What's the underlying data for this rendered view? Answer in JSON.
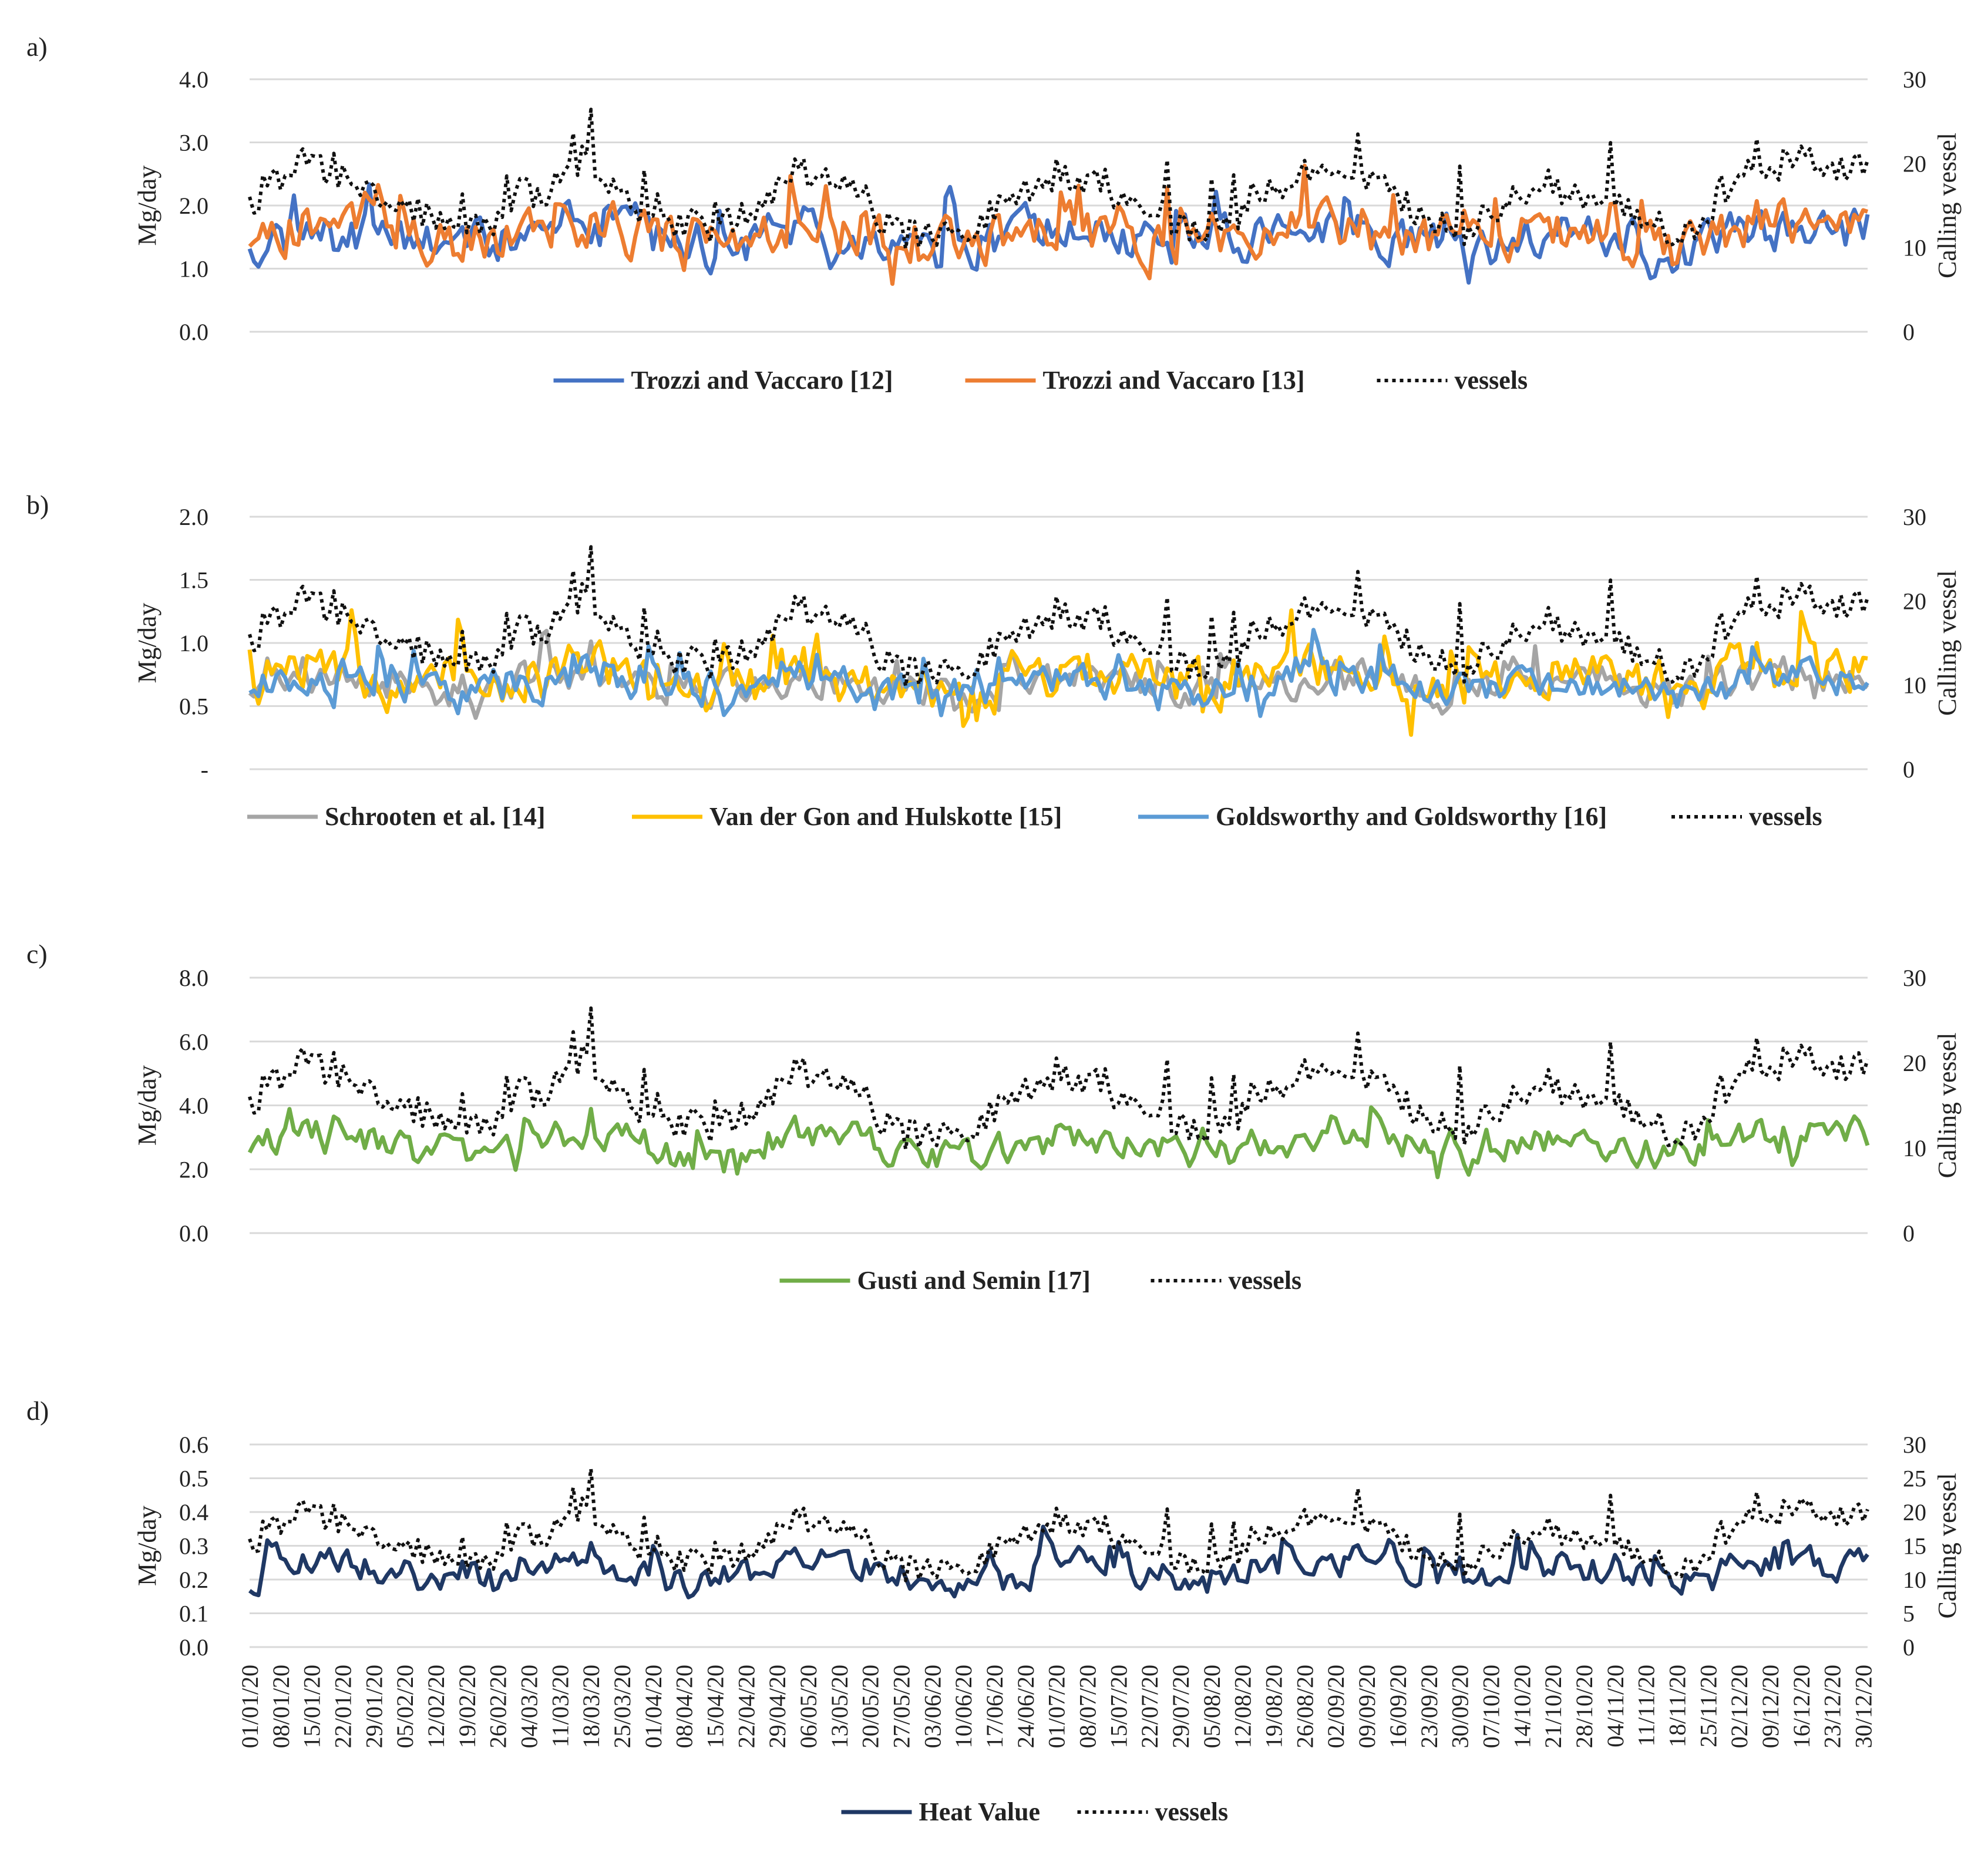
{
  "chart_data": [
    {
      "type": "line",
      "panel": "a)",
      "ylabel": "Mg/day",
      "y2label": "Calling vessel",
      "ylim": [
        0,
        4
      ],
      "y2lim": [
        0,
        30
      ],
      "yticks": [
        "0.0",
        "1.0",
        "2.0",
        "3.0",
        "4.0"
      ],
      "y2ticks": [
        "0",
        "10",
        "20",
        "30"
      ],
      "grid": true,
      "legend_position": "bottom",
      "series": [
        {
          "name": "Trozzi and Vaccaro [12]",
          "axis": "left",
          "color": "#4472C4",
          "style": "solid",
          "gen": {
            "base": 1.45,
            "amp": 0.55,
            "spike": 1.2,
            "floor": 0.3,
            "ceil": 3.8,
            "seed": 11,
            "corr": "vessels",
            "k": 0.04
          }
        },
        {
          "name": "Trozzi and Vaccaro [13]",
          "axis": "left",
          "color": "#ED7D31",
          "style": "solid",
          "gen": {
            "base": 1.5,
            "amp": 0.6,
            "spike": 1.3,
            "floor": 0.25,
            "ceil": 3.7,
            "seed": 13,
            "corr": "vessels",
            "k": 0.045
          }
        },
        {
          "name": "vessels",
          "axis": "right",
          "color": "#111111",
          "style": "dotted",
          "gen": {
            "base": 15,
            "amp": 3.5,
            "spike": 6,
            "floor": 6,
            "ceil": 27,
            "seed": 7,
            "corr": "none",
            "k": 0
          }
        }
      ]
    },
    {
      "type": "line",
      "panel": "b)",
      "ylabel": "Mg/day",
      "y2label": "Calling vessel",
      "ylim": [
        0,
        2
      ],
      "y2lim": [
        0,
        30
      ],
      "yticks": [
        "-",
        "0.5",
        "1.0",
        "1.5",
        "2.0"
      ],
      "y2ticks": [
        "0",
        "10",
        "20",
        "30"
      ],
      "grid": true,
      "legend_position": "bottom",
      "series": [
        {
          "name": "Schrooten et al. [14]",
          "axis": "left",
          "color": "#A5A5A5",
          "style": "solid",
          "gen": {
            "base": 0.65,
            "amp": 0.2,
            "spike": 0.5,
            "floor": 0.15,
            "ceil": 1.4,
            "seed": 17,
            "corr": "vessels",
            "k": 0.018
          }
        },
        {
          "name": "Van der Gon and Hulskotte [15]",
          "axis": "left",
          "color": "#FFC000",
          "style": "solid",
          "gen": {
            "base": 0.7,
            "amp": 0.3,
            "spike": 0.7,
            "floor": 0.1,
            "ceil": 1.75,
            "seed": 19,
            "corr": "vessels",
            "k": 0.022
          }
        },
        {
          "name": "Goldsworthy and Goldsworthy [16]",
          "axis": "left",
          "color": "#5B9BD5",
          "style": "solid",
          "gen": {
            "base": 0.65,
            "amp": 0.2,
            "spike": 0.5,
            "floor": 0.15,
            "ceil": 1.4,
            "seed": 23,
            "corr": "vessels",
            "k": 0.018
          }
        },
        {
          "name": "vessels",
          "axis": "right",
          "color": "#111111",
          "style": "dotted",
          "gen": {
            "base": 15,
            "amp": 3.5,
            "spike": 6,
            "floor": 6,
            "ceil": 27,
            "seed": 7,
            "corr": "none",
            "k": 0
          }
        }
      ]
    },
    {
      "type": "line",
      "panel": "c)",
      "ylabel": "Mg/day",
      "y2label": "Calling vessel",
      "ylim": [
        0,
        8
      ],
      "y2lim": [
        0,
        30
      ],
      "yticks": [
        "0.0",
        "2.0",
        "4.0",
        "6.0",
        "8.0"
      ],
      "y2ticks": [
        "0",
        "10",
        "20",
        "30"
      ],
      "grid": true,
      "legend_position": "bottom",
      "series": [
        {
          "name": "Gusti and Semin [17]",
          "axis": "left",
          "color": "#70AD47",
          "style": "solid",
          "gen": {
            "base": 2.7,
            "amp": 0.8,
            "spike": 1.8,
            "floor": 0.7,
            "ceil": 6.0,
            "seed": 29,
            "corr": "vessels",
            "k": 0.08
          }
        },
        {
          "name": "vessels",
          "axis": "right",
          "color": "#111111",
          "style": "dotted",
          "gen": {
            "base": 15,
            "amp": 3.5,
            "spike": 6,
            "floor": 6,
            "ceil": 27,
            "seed": 7,
            "corr": "none",
            "k": 0
          }
        }
      ]
    },
    {
      "type": "line",
      "panel": "d)",
      "ylabel": "Mg/day",
      "y2label": "Calling vessel",
      "ylim": [
        0,
        0.6
      ],
      "y2lim": [
        0,
        30
      ],
      "yticks": [
        "0.0",
        "0.1",
        "0.2",
        "0.3",
        "0.4",
        "0.5",
        "0.6"
      ],
      "y2ticks": [
        "0",
        "5",
        "10",
        "15",
        "20",
        "25",
        "30"
      ],
      "grid": true,
      "legend_position": "bottom",
      "x": [
        "01/01/20",
        "08/01/20",
        "15/01/20",
        "22/01/20",
        "29/01/20",
        "05/02/20",
        "12/02/20",
        "19/02/20",
        "26/02/20",
        "04/03/20",
        "11/03/20",
        "18/03/20",
        "25/03/20",
        "01/04/20",
        "08/04/20",
        "15/04/20",
        "22/04/20",
        "29/04/20",
        "06/05/20",
        "13/05/20",
        "20/05/20",
        "27/05/20",
        "03/06/20",
        "10/06/20",
        "17/06/20",
        "24/06/20",
        "01/07/20",
        "08/07/20",
        "15/07/20",
        "22/07/20",
        "29/07/20",
        "05/08/20",
        "12/08/20",
        "19/08/20",
        "26/08/20",
        "02/09/20",
        "09/09/20",
        "16/09/20",
        "23/09/20",
        "30/09/20",
        "07/10/20",
        "14/10/20",
        "21/10/20",
        "28/10/20",
        "04/11/20",
        "11/11/20",
        "18/11/20",
        "25/11/20",
        "02/12/20",
        "09/12/20",
        "16/12/20",
        "23/12/20",
        "30/12/20"
      ],
      "series": [
        {
          "name": "Heat Value",
          "axis": "left",
          "color": "#1F3864",
          "style": "solid",
          "gen": {
            "base": 0.22,
            "amp": 0.07,
            "spike": 0.17,
            "floor": 0.05,
            "ceil": 0.51,
            "seed": 31,
            "corr": "vessels",
            "k": 0.007
          }
        },
        {
          "name": "vessels",
          "axis": "right",
          "color": "#111111",
          "style": "dotted",
          "gen": {
            "base": 15,
            "amp": 3.5,
            "spike": 6,
            "floor": 6,
            "ceil": 27,
            "seed": 7,
            "corr": "none",
            "k": 0
          }
        }
      ]
    }
  ]
}
